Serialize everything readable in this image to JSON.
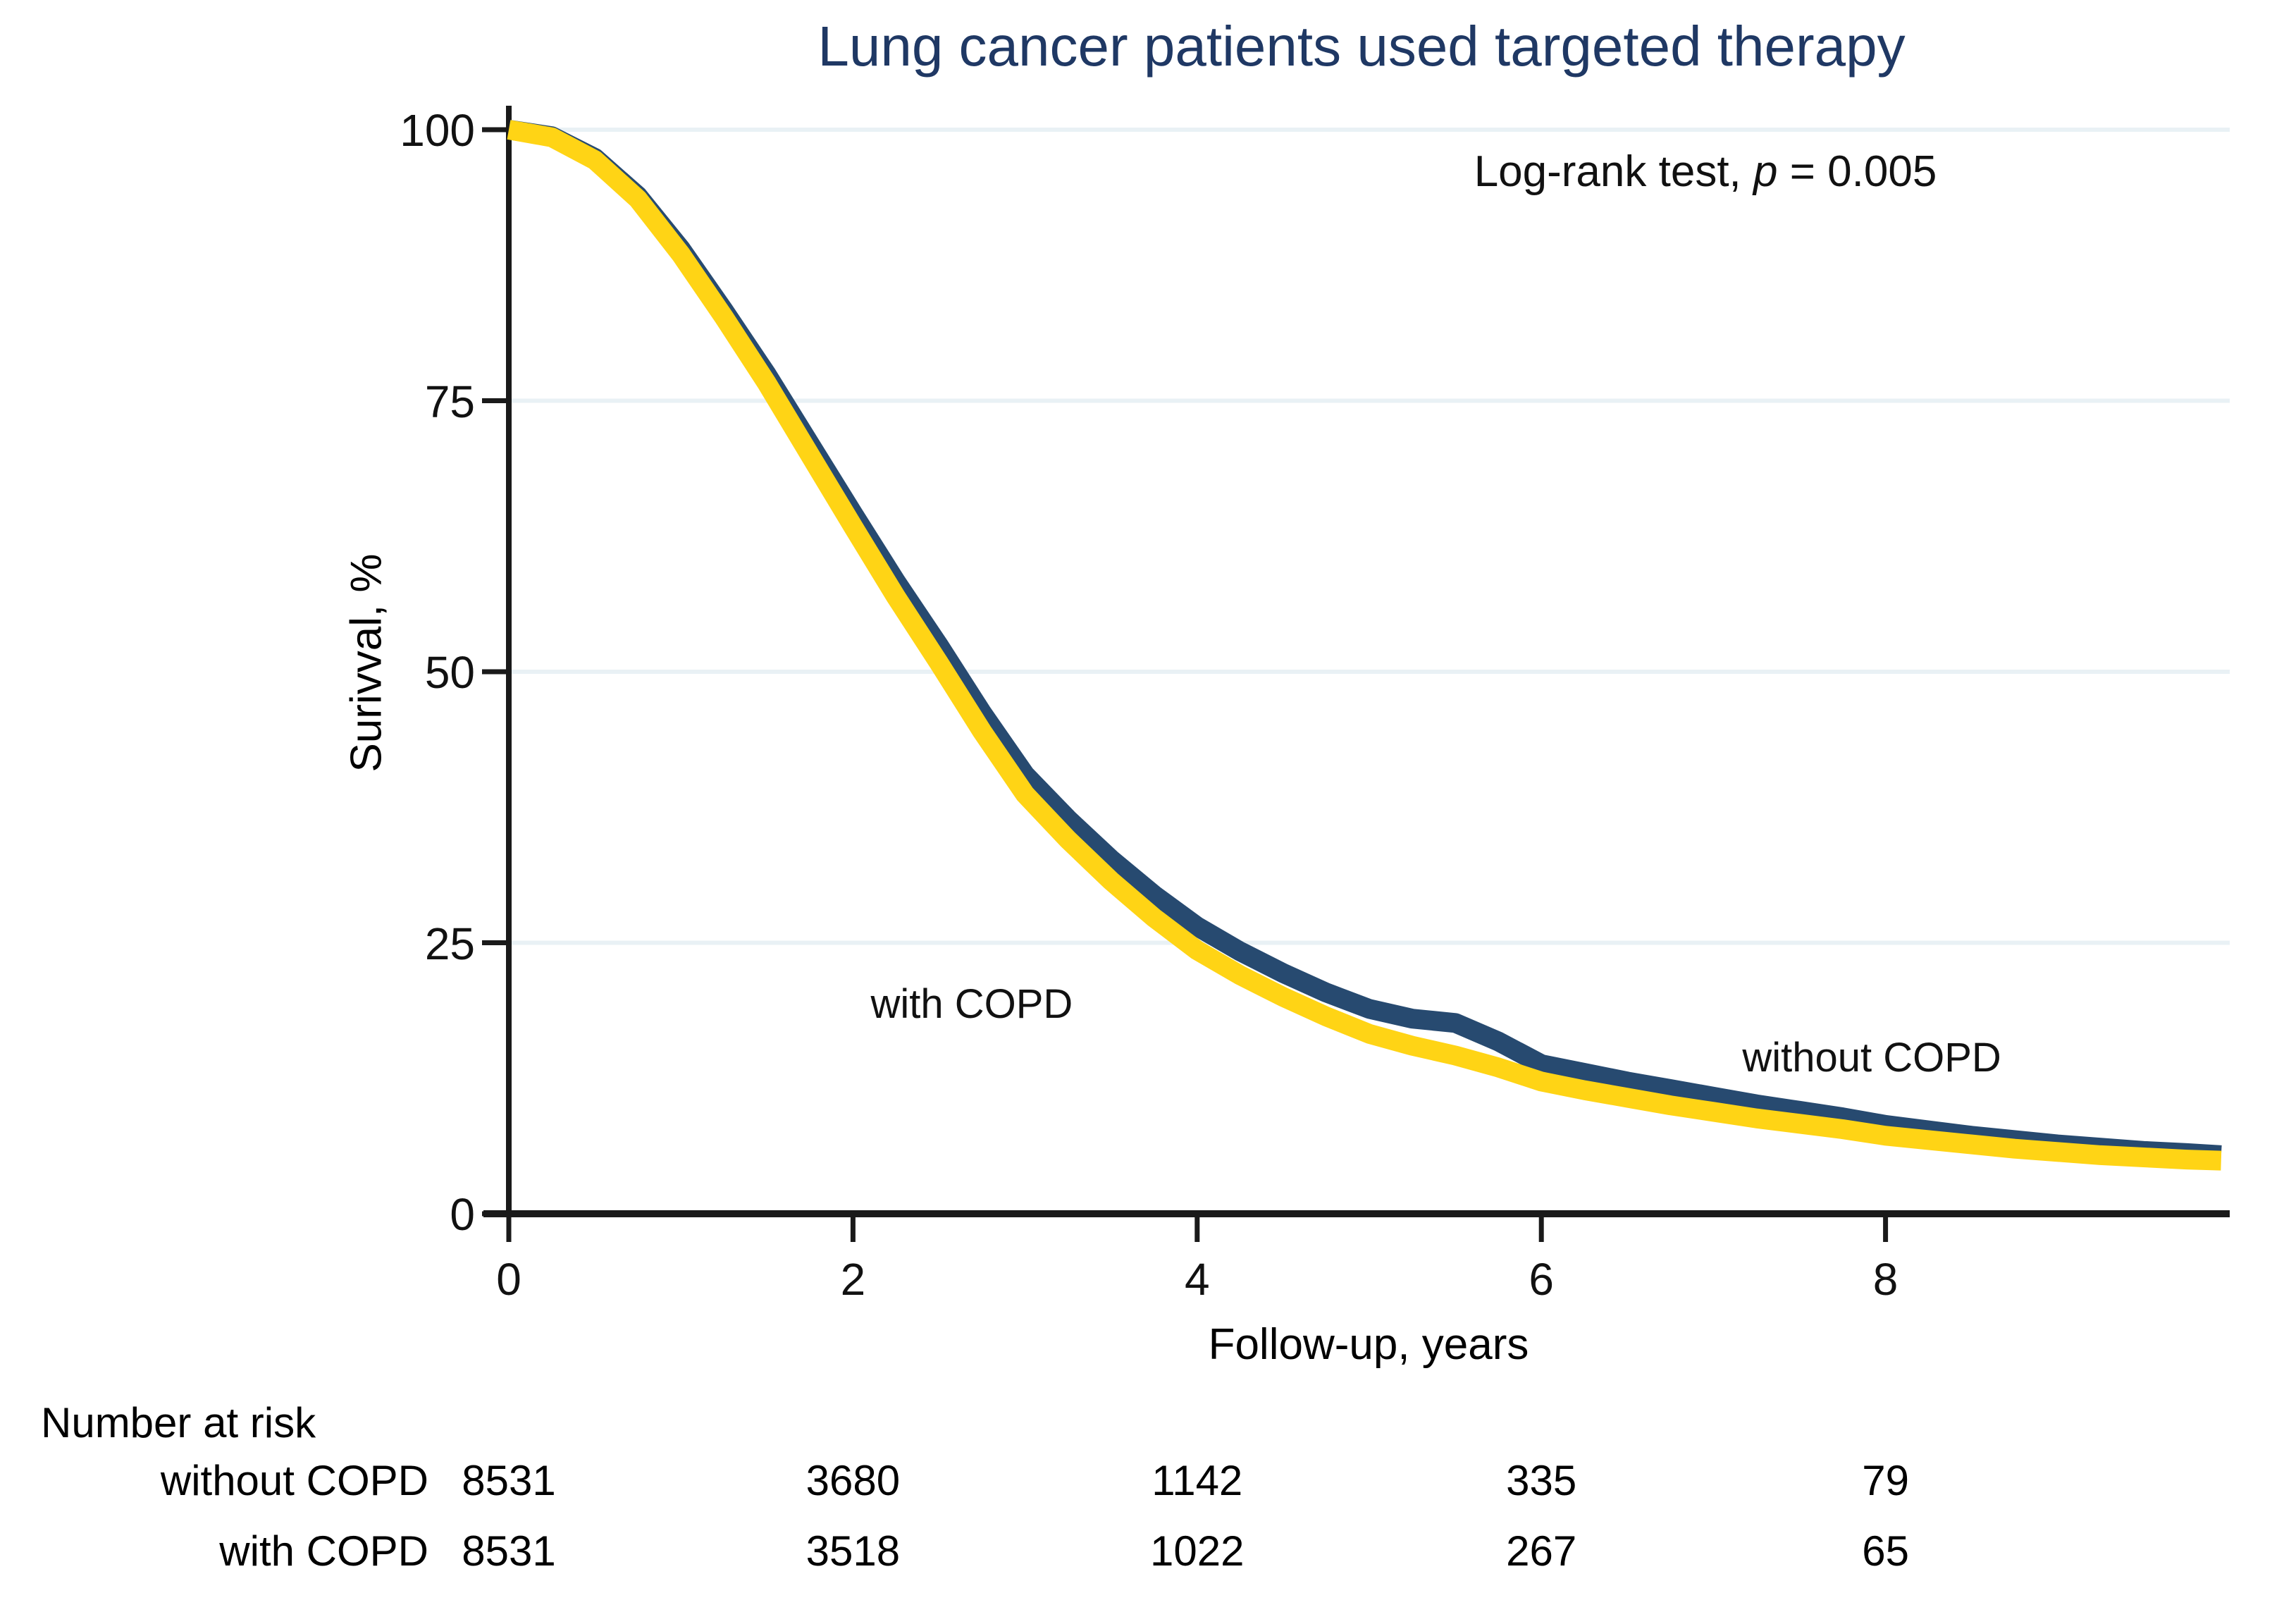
{
  "page": {
    "background": "#FFFFFF"
  },
  "chart_data": {
    "type": "line",
    "subtype": "kaplan-meier-survival",
    "title": "Lung cancer patients used targeted therapy",
    "title_color": "#1F3864",
    "annotation": {
      "text_prefix": "Log-rank test, ",
      "italic_symbol": "p",
      "text_suffix": " = 0.005"
    },
    "xlabel": "Follow-up, years",
    "ylabel": "Surivval, %",
    "xlim": [
      0,
      10
    ],
    "ylim": [
      0,
      100
    ],
    "x_ticks": [
      0,
      2,
      4,
      6,
      8
    ],
    "y_ticks": [
      0,
      25,
      50,
      75,
      100
    ],
    "grid_y": [
      25,
      50,
      75,
      100
    ],
    "grid_color": "#E9F1F5",
    "axis_color": "#1A1A1A",
    "text_color": "#111111",
    "legend_position": "labels-on-chart",
    "series": [
      {
        "name": "without COPD",
        "color": "#274A70",
        "label_pos": {
          "x": 7.92,
          "y": 14.4
        },
        "x": [
          0,
          0.25,
          0.5,
          0.75,
          1.0,
          1.25,
          1.5,
          1.75,
          2.0,
          2.25,
          2.5,
          2.75,
          3.0,
          3.25,
          3.5,
          3.75,
          4.0,
          4.25,
          4.5,
          4.75,
          5.0,
          5.25,
          5.5,
          5.75,
          6.0,
          6.25,
          6.5,
          6.75,
          7.0,
          7.25,
          7.5,
          7.75,
          8.0,
          8.25,
          8.5,
          8.75,
          9.0,
          9.25,
          9.5,
          9.75,
          9.95
        ],
        "y": [
          100,
          99.4,
          97.4,
          93.9,
          89.0,
          83.3,
          77.4,
          71.0,
          64.6,
          58.3,
          52.4,
          46.2,
          40.5,
          36.4,
          32.7,
          29.4,
          26.5,
          24.2,
          22.2,
          20.4,
          18.9,
          18.0,
          17.6,
          15.9,
          13.8,
          13.0,
          12.2,
          11.5,
          10.8,
          10.1,
          9.5,
          8.9,
          8.2,
          7.7,
          7.2,
          6.8,
          6.4,
          6.1,
          5.8,
          5.6,
          5.4
        ]
      },
      {
        "name": "with COPD",
        "color": "#FFD415",
        "label_pos": {
          "x": 2.69,
          "y": 19.3
        },
        "x": [
          0,
          0.25,
          0.5,
          0.75,
          1.0,
          1.25,
          1.5,
          1.75,
          2.0,
          2.25,
          2.5,
          2.75,
          3.0,
          3.25,
          3.5,
          3.75,
          4.0,
          4.25,
          4.5,
          4.75,
          5.0,
          5.25,
          5.5,
          5.75,
          6.0,
          6.25,
          6.5,
          6.75,
          7.0,
          7.25,
          7.5,
          7.75,
          8.0,
          8.25,
          8.5,
          8.75,
          9.0,
          9.25,
          9.5,
          9.75,
          9.95
        ],
        "y": [
          100,
          99.3,
          97.2,
          93.6,
          88.5,
          82.7,
          76.6,
          70.0,
          63.4,
          56.9,
          50.8,
          44.5,
          38.7,
          34.5,
          30.7,
          27.3,
          24.3,
          22.0,
          20.0,
          18.2,
          16.6,
          15.5,
          14.6,
          13.5,
          12.2,
          11.4,
          10.7,
          10.0,
          9.4,
          8.8,
          8.3,
          7.8,
          7.2,
          6.8,
          6.4,
          6.0,
          5.7,
          5.4,
          5.2,
          5.0,
          4.9
        ]
      }
    ],
    "risk_table": {
      "title": "Number at risk",
      "times": [
        0,
        2,
        4,
        6,
        8
      ],
      "rows": [
        {
          "label": "without COPD",
          "counts": [
            "8531",
            "3680",
            "1142",
            "335",
            "79"
          ]
        },
        {
          "label": "with COPD",
          "counts": [
            "8531",
            "3518",
            "1022",
            "267",
            "65"
          ]
        }
      ]
    }
  }
}
